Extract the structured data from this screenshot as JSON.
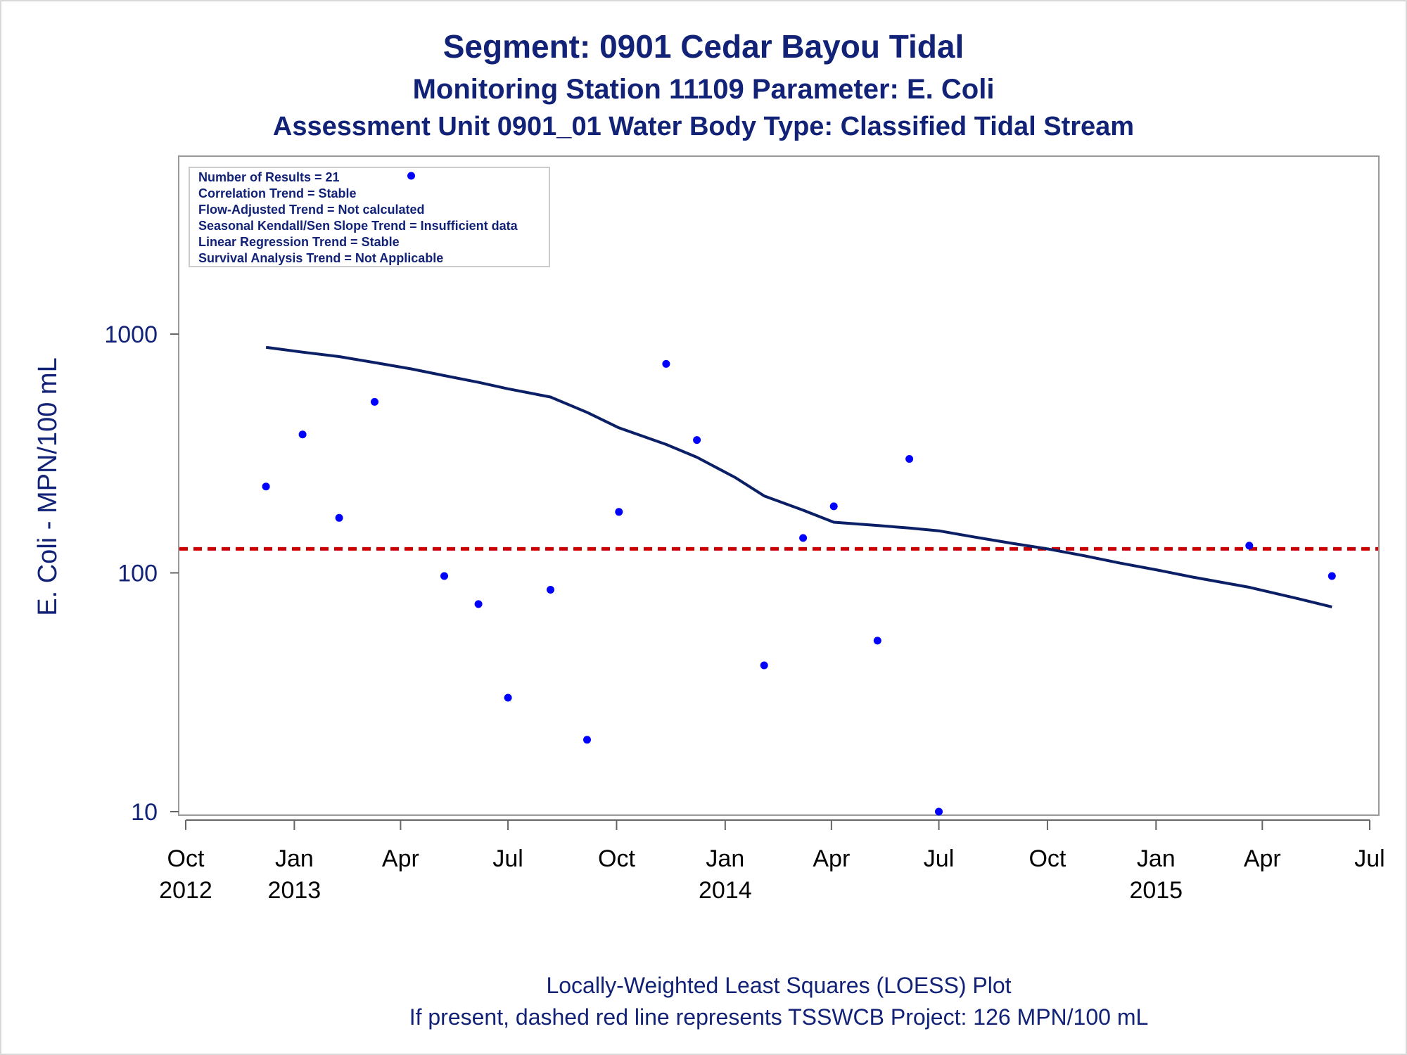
{
  "title": "Segment: 0901  Cedar Bayou Tidal",
  "subtitle1": "Monitoring Station 11109 Parameter: E. Coli",
  "subtitle2": "Assessment Unit 0901_01   Water Body Type: Classified Tidal Stream",
  "ylabel": "E. Coli - MPN/100 mL",
  "footnote1": "Locally-Weighted Least Squares (LOESS) Plot",
  "footnote2": "If present, dashed red line represents TSSWCB Project: 126 MPN/100 mL",
  "trend_box": [
    "Number of Results = 21",
    "Correlation Trend = Stable",
    "Flow-Adjusted Trend = Not calculated",
    "Seasonal Kendall/Sen Slope Trend = Insufficient data",
    "Linear Regression Trend = Stable",
    "Survival Analysis Trend = Not Applicable"
  ],
  "colors": {
    "text": "#112277",
    "points": "#0000ff",
    "loess": "#0b1f66",
    "reference": "#cc0000",
    "frame": "#999999"
  },
  "chart_data": {
    "type": "scatter",
    "x_axis": {
      "type": "date",
      "range": [
        "2012-10-01",
        "2015-07-01"
      ],
      "ticks": [
        {
          "date": "2012-10-01",
          "line1": "Oct",
          "line2": "2012"
        },
        {
          "date": "2013-01-01",
          "line1": "Jan",
          "line2": "2013"
        },
        {
          "date": "2013-04-01",
          "line1": "Apr",
          "line2": ""
        },
        {
          "date": "2013-07-01",
          "line1": "Jul",
          "line2": ""
        },
        {
          "date": "2013-10-01",
          "line1": "Oct",
          "line2": ""
        },
        {
          "date": "2014-01-01",
          "line1": "Jan",
          "line2": "2014"
        },
        {
          "date": "2014-04-01",
          "line1": "Apr",
          "line2": ""
        },
        {
          "date": "2014-07-01",
          "line1": "Jul",
          "line2": ""
        },
        {
          "date": "2014-10-01",
          "line1": "Oct",
          "line2": ""
        },
        {
          "date": "2015-01-01",
          "line1": "Jan",
          "line2": "2015"
        },
        {
          "date": "2015-04-01",
          "line1": "Apr",
          "line2": ""
        },
        {
          "date": "2015-07-01",
          "line1": "Jul",
          "line2": ""
        }
      ]
    },
    "y_axis": {
      "scale": "log",
      "range": [
        10,
        5000
      ],
      "ticks": [
        10,
        100,
        1000
      ]
    },
    "points": [
      {
        "x": "2012-12-08",
        "y": 230
      },
      {
        "x": "2013-01-08",
        "y": 380
      },
      {
        "x": "2013-02-08",
        "y": 170
      },
      {
        "x": "2013-03-10",
        "y": 520
      },
      {
        "x": "2013-04-10",
        "y": 4600
      },
      {
        "x": "2013-05-08",
        "y": 97
      },
      {
        "x": "2013-06-06",
        "y": 74
      },
      {
        "x": "2013-07-01",
        "y": 30
      },
      {
        "x": "2013-08-06",
        "y": 85
      },
      {
        "x": "2013-09-06",
        "y": 20
      },
      {
        "x": "2013-10-03",
        "y": 180
      },
      {
        "x": "2013-11-12",
        "y": 750
      },
      {
        "x": "2013-12-08",
        "y": 360
      },
      {
        "x": "2014-02-03",
        "y": 41
      },
      {
        "x": "2014-03-08",
        "y": 140
      },
      {
        "x": "2014-04-03",
        "y": 190
      },
      {
        "x": "2014-05-10",
        "y": 52
      },
      {
        "x": "2014-06-06",
        "y": 300
      },
      {
        "x": "2014-07-01",
        "y": 10
      },
      {
        "x": "2015-03-21",
        "y": 130
      },
      {
        "x": "2015-05-30",
        "y": 97
      }
    ],
    "loess": [
      {
        "x": "2012-12-08",
        "y": 880
      },
      {
        "x": "2013-01-08",
        "y": 840
      },
      {
        "x": "2013-02-08",
        "y": 805
      },
      {
        "x": "2013-03-10",
        "y": 760
      },
      {
        "x": "2013-04-10",
        "y": 715
      },
      {
        "x": "2013-05-08",
        "y": 670
      },
      {
        "x": "2013-06-06",
        "y": 628
      },
      {
        "x": "2013-07-01",
        "y": 590
      },
      {
        "x": "2013-08-06",
        "y": 545
      },
      {
        "x": "2013-09-06",
        "y": 470
      },
      {
        "x": "2013-10-03",
        "y": 405
      },
      {
        "x": "2013-11-12",
        "y": 345
      },
      {
        "x": "2013-12-08",
        "y": 305
      },
      {
        "x": "2014-01-10",
        "y": 250
      },
      {
        "x": "2014-02-03",
        "y": 210
      },
      {
        "x": "2014-03-08",
        "y": 183
      },
      {
        "x": "2014-04-03",
        "y": 163
      },
      {
        "x": "2014-05-10",
        "y": 158
      },
      {
        "x": "2014-06-06",
        "y": 154
      },
      {
        "x": "2014-07-01",
        "y": 150
      },
      {
        "x": "2014-08-01",
        "y": 141
      },
      {
        "x": "2014-09-01",
        "y": 133
      },
      {
        "x": "2014-10-01",
        "y": 126
      },
      {
        "x": "2014-11-01",
        "y": 118
      },
      {
        "x": "2014-12-01",
        "y": 110
      },
      {
        "x": "2015-01-01",
        "y": 103
      },
      {
        "x": "2015-02-01",
        "y": 96
      },
      {
        "x": "2015-03-21",
        "y": 87
      },
      {
        "x": "2015-05-01",
        "y": 78
      },
      {
        "x": "2015-05-30",
        "y": 72
      }
    ],
    "reference_line": {
      "y": 126
    }
  }
}
